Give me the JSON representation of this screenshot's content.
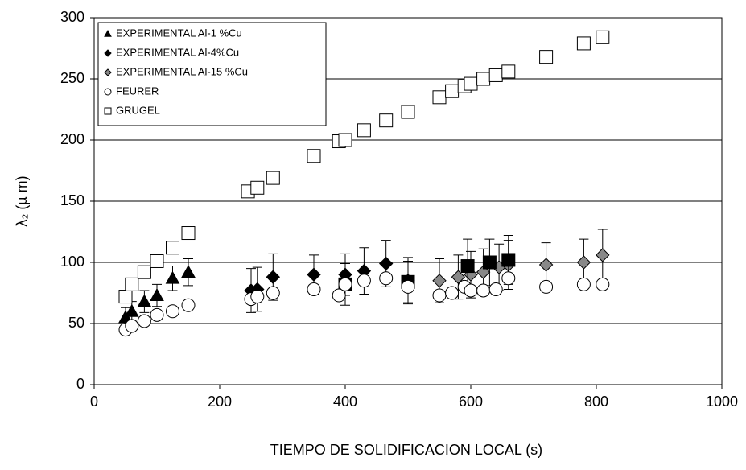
{
  "chart_data": {
    "type": "scatter",
    "xlabel": "TIEMPO DE SOLIDIFICACION LOCAL (s)",
    "ylabel": "λ₂ (µ m)",
    "xlim": [
      0,
      1000
    ],
    "xticks": [
      0,
      200,
      400,
      600,
      800,
      1000
    ],
    "ylim": [
      0,
      300
    ],
    "yticks": [
      0,
      50,
      100,
      150,
      200,
      250,
      300
    ],
    "grid": true,
    "legend": "upper left",
    "series": [
      {
        "name": "EXPERIMENTAL Al-1 %Cu",
        "marker": "triangle",
        "color": "#000000",
        "fill": "#000000",
        "x": [
          50,
          60,
          80,
          100,
          125,
          150
        ],
        "values": [
          55,
          60,
          68,
          73,
          87,
          92
        ],
        "errors": [
          8,
          8,
          9,
          9,
          10,
          11
        ]
      },
      {
        "name": "EXPERIMENTAL Al-4%Cu",
        "marker": "diamond",
        "color": "#000000",
        "fill": "#000000",
        "x": [
          250,
          260,
          285,
          350,
          400,
          430,
          465,
          500
        ],
        "values": [
          77,
          78,
          88,
          90,
          90,
          93,
          99,
          85
        ],
        "errors": [
          18,
          18,
          19,
          16,
          17,
          19,
          19,
          19
        ]
      },
      {
        "name": "EXPERIMENTAL Al-15 %Cu",
        "marker": "diamond",
        "color": "#000000",
        "fill": "#888888",
        "x": [
          550,
          580,
          600,
          620,
          645,
          660,
          720,
          780,
          810
        ],
        "values": [
          85,
          88,
          90,
          92,
          96,
          98,
          98,
          100,
          106
        ],
        "errors": [
          18,
          18,
          19,
          19,
          19,
          20,
          18,
          19,
          21
        ]
      },
      {
        "marker": "square",
        "color": "#000000",
        "fill": "#000000",
        "x": [
          400,
          500,
          595,
          630,
          660
        ],
        "values": [
          82,
          84,
          97,
          100,
          102
        ],
        "errors": [
          17,
          17,
          22,
          19,
          20
        ]
      },
      {
        "name": "FEURER",
        "marker": "circle",
        "color": "#000000",
        "fill": "#ffffff",
        "x": [
          50,
          60,
          80,
          100,
          125,
          150,
          250,
          260,
          285,
          350,
          390,
          400,
          430,
          465,
          500,
          550,
          570,
          590,
          600,
          620,
          640,
          660,
          720,
          780,
          810
        ],
        "values": [
          45,
          48,
          52,
          57,
          60,
          65,
          70,
          72,
          75,
          78,
          73,
          82,
          85,
          87,
          80,
          73,
          75,
          80,
          77,
          77,
          78,
          87,
          80,
          82,
          82
        ]
      },
      {
        "name": "GRUGEL",
        "marker": "square",
        "color": "#000000",
        "fill": "#ffffff",
        "x": [
          50,
          60,
          80,
          100,
          125,
          150,
          245,
          260,
          285,
          350,
          390,
          400,
          430,
          465,
          500,
          550,
          570,
          590,
          600,
          620,
          640,
          660,
          720,
          780,
          810
        ],
        "values": [
          72,
          82,
          92,
          101,
          112,
          124,
          158,
          161,
          169,
          187,
          199,
          200,
          208,
          216,
          223,
          235,
          240,
          244,
          246,
          250,
          253,
          256,
          268,
          279,
          284
        ]
      }
    ]
  }
}
